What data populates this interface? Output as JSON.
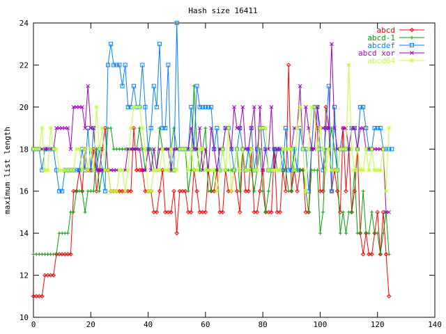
{
  "chart_data": {
    "type": "line",
    "title": "Hash size 16411",
    "xlabel": "",
    "ylabel": "maximum list length",
    "xlim": [
      0,
      140
    ],
    "ylim": [
      10,
      24
    ],
    "xticks": [
      0,
      20,
      40,
      60,
      80,
      100,
      120,
      140
    ],
    "yticks": [
      10,
      12,
      14,
      16,
      18,
      20,
      22,
      24
    ],
    "grid": false,
    "legend_position": "top-right",
    "series": [
      {
        "name": "abcd",
        "color": "#ff0000",
        "marker": "diamond",
        "values": [
          11,
          11,
          11,
          11,
          12,
          12,
          12,
          12,
          13,
          13,
          13,
          13,
          13,
          13,
          16,
          16,
          17,
          16,
          18,
          17,
          17,
          18,
          16,
          17,
          18,
          19,
          17,
          16,
          16,
          16,
          16,
          16,
          16,
          16,
          16,
          19,
          17,
          17,
          17,
          16,
          16,
          16,
          15,
          15,
          16,
          17,
          15,
          15,
          15,
          16,
          14,
          16,
          16,
          16,
          15,
          15,
          17,
          16,
          15,
          15,
          15,
          17,
          16,
          16,
          17,
          15,
          15,
          17,
          16,
          16,
          17,
          16,
          15,
          18,
          16,
          16,
          18,
          15,
          15,
          16,
          17,
          15,
          15,
          15,
          18,
          15,
          15,
          17,
          16,
          22,
          16,
          17,
          16,
          17,
          17,
          15,
          15,
          18,
          20,
          19,
          16,
          16,
          20,
          19,
          16,
          17,
          16,
          15,
          19,
          16,
          18,
          15,
          16,
          18,
          14,
          13,
          14,
          13,
          13,
          14,
          15,
          13,
          15,
          13,
          11
        ]
      },
      {
        "name": "abcd-1",
        "color": "#00a000",
        "marker": "plus",
        "values": [
          13,
          13,
          13,
          13,
          13,
          13,
          13,
          13,
          13,
          14,
          14,
          14,
          14,
          15,
          15,
          16,
          16,
          16,
          15,
          16,
          16,
          16,
          18,
          16,
          17,
          17,
          19,
          19,
          18,
          18,
          18,
          18,
          18,
          18,
          18,
          18,
          18,
          19,
          18,
          17,
          18,
          18,
          17,
          17,
          19,
          18,
          18,
          18,
          18,
          19,
          18,
          18,
          18,
          18,
          16,
          17,
          21,
          18,
          17,
          18,
          19,
          16,
          16,
          17,
          17,
          18,
          18,
          17,
          17,
          17,
          17,
          18,
          16,
          18,
          17,
          18,
          17,
          16,
          17,
          18,
          16,
          15,
          16,
          17,
          18,
          17,
          17,
          18,
          17,
          16,
          16,
          18,
          17,
          17,
          17,
          16,
          15,
          17,
          17,
          17,
          14,
          15,
          18,
          18,
          19,
          18,
          17,
          14,
          15,
          14,
          15,
          15,
          17,
          14,
          14,
          16,
          14,
          14,
          15,
          14,
          14,
          13,
          14,
          15,
          13
        ]
      },
      {
        "name": "abcdef",
        "color": "#0080ff",
        "marker": "square",
        "values": [
          18,
          18,
          18,
          17,
          18,
          18,
          18,
          18,
          17,
          16,
          16,
          17,
          17,
          17,
          17,
          17,
          17,
          18,
          17,
          19,
          17,
          19,
          17,
          18,
          17,
          16,
          22,
          23,
          22,
          22,
          22,
          21,
          22,
          20,
          20,
          21,
          20,
          20,
          22,
          20,
          18,
          19,
          21,
          20,
          23,
          19,
          19,
          22,
          17,
          17,
          24,
          18,
          18,
          18,
          18,
          20,
          18,
          21,
          20,
          20,
          20,
          20,
          20,
          18,
          19,
          17,
          18,
          19,
          19,
          18,
          17,
          18,
          19,
          18,
          17,
          18,
          19,
          17,
          18,
          19,
          19,
          18,
          17,
          17,
          18,
          18,
          18,
          17,
          19,
          17,
          17,
          18,
          17,
          19,
          18,
          18,
          16,
          18,
          20,
          20,
          18,
          17,
          19,
          21,
          16,
          20,
          17,
          18,
          18,
          18,
          18,
          19,
          19,
          18,
          20,
          20,
          19,
          18,
          18,
          19,
          19,
          19,
          18,
          18,
          18,
          18
        ]
      },
      {
        "name": "abcd xor",
        "color": "#a000c0",
        "marker": "cross",
        "values": [
          18,
          18,
          18,
          18,
          18,
          18,
          18,
          18,
          19,
          19,
          19,
          19,
          19,
          18,
          20,
          20,
          20,
          20,
          19,
          21,
          19,
          19,
          17,
          17,
          17,
          17,
          17,
          17,
          17,
          17,
          17,
          17,
          17,
          18,
          18,
          18,
          18,
          18,
          17,
          17,
          18,
          17,
          18,
          17,
          18,
          18,
          18,
          18,
          17,
          18,
          18,
          18,
          18,
          18,
          18,
          19,
          18,
          18,
          19,
          17,
          18,
          17,
          19,
          18,
          17,
          18,
          18,
          19,
          19,
          18,
          20,
          19,
          19,
          20,
          18,
          18,
          19,
          20,
          17,
          20,
          17,
          18,
          18,
          20,
          17,
          18,
          18,
          18,
          18,
          18,
          18,
          19,
          19,
          21,
          18,
          20,
          19,
          18,
          18,
          20,
          19,
          19,
          19,
          19,
          23,
          19,
          18,
          18,
          19,
          19,
          18,
          19,
          19,
          18,
          19,
          19,
          18,
          18,
          18,
          18,
          18,
          18,
          18,
          15,
          15
        ]
      },
      {
        "name": "abcd64",
        "color": "#c0ff40",
        "marker": "star",
        "values": [
          18,
          18,
          18,
          19,
          17,
          17,
          19,
          18,
          18,
          17,
          17,
          17,
          17,
          17,
          17,
          18,
          18,
          17,
          18,
          17,
          18,
          17,
          20,
          18,
          19,
          17,
          17,
          16,
          16,
          16,
          17,
          17,
          16,
          17,
          19,
          20,
          20,
          20,
          19,
          18,
          16,
          16,
          17,
          17,
          17,
          18,
          17,
          17,
          18,
          17,
          17,
          18,
          18,
          18,
          17,
          18,
          17,
          17,
          18,
          18,
          17,
          17,
          17,
          17,
          16,
          17,
          18,
          17,
          19,
          16,
          17,
          18,
          17,
          18,
          17,
          17,
          18,
          17,
          17,
          19,
          19,
          19,
          17,
          17,
          17,
          17,
          17,
          18,
          18,
          18,
          18,
          17,
          19,
          20,
          18,
          16,
          18,
          20,
          20,
          18,
          19,
          18,
          17,
          18,
          17,
          17,
          17,
          18,
          18,
          18,
          22,
          18,
          17,
          18,
          17,
          17,
          18,
          17,
          18,
          17,
          17,
          17,
          18,
          16,
          19
        ]
      }
    ]
  }
}
